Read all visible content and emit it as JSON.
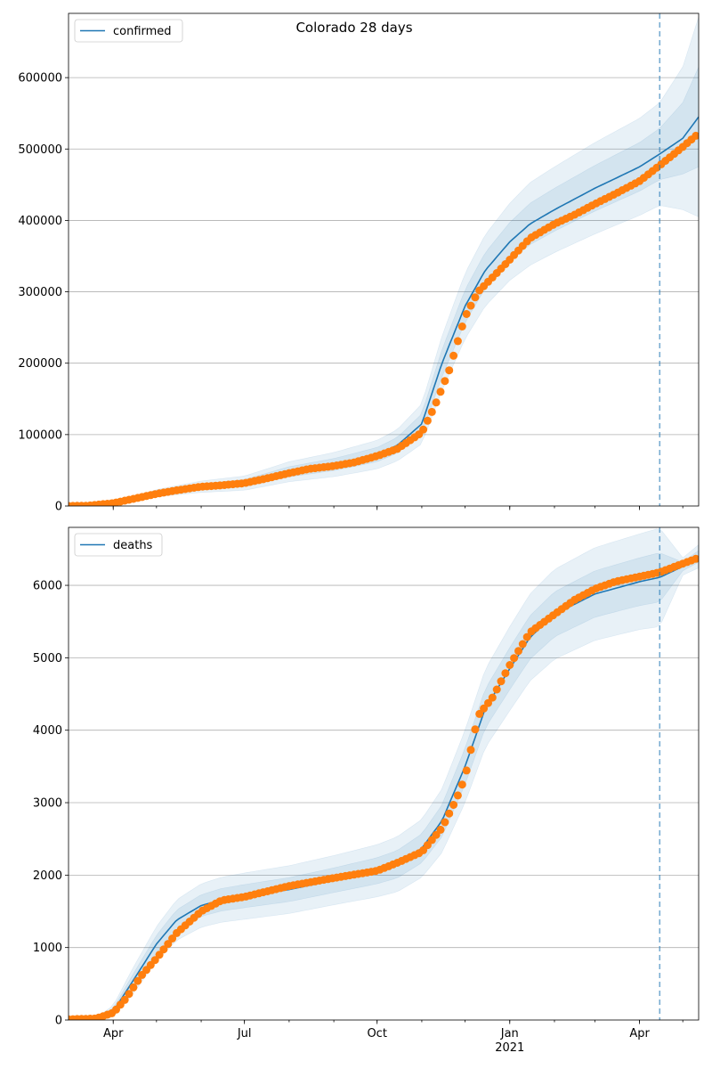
{
  "title": "Colorado 28 days",
  "colors": {
    "model_line": "#1f77b4",
    "band": "#1f77b4",
    "observed": "#ff7f0e",
    "grid": "#b0b0b0",
    "forecast_line": "#1f77b4"
  },
  "chart_data": [
    {
      "type": "line",
      "legend": "confirmed",
      "legend_placement": "top-left",
      "grid": "y",
      "xlim": [
        "2020-03-01",
        "2021-05-12"
      ],
      "ylim": [
        0,
        690000
      ],
      "yticks": [
        0,
        100000,
        200000,
        300000,
        400000,
        500000,
        600000
      ],
      "yticklabels": [
        "0",
        "100000",
        "200000",
        "300000",
        "400000",
        "500000",
        "600000"
      ],
      "xtick_labels_shown": false,
      "forecast_start": "2021-04-15",
      "series": [
        {
          "name": "confirmed",
          "role": "model",
          "x": [
            "2020-03-01",
            "2020-04-01",
            "2020-05-01",
            "2020-06-01",
            "2020-07-01",
            "2020-08-01",
            "2020-09-01",
            "2020-10-01",
            "2020-10-15",
            "2020-11-01",
            "2020-11-15",
            "2020-12-01",
            "2020-12-15",
            "2021-01-01",
            "2021-01-15",
            "2021-02-01",
            "2021-03-01",
            "2021-04-01",
            "2021-04-15",
            "2021-05-01",
            "2021-05-12"
          ],
          "values": [
            0,
            3000,
            18000,
            27000,
            32000,
            48000,
            58000,
            72000,
            85000,
            115000,
            200000,
            280000,
            330000,
            370000,
            395000,
            415000,
            445000,
            475000,
            493000,
            515000,
            545000
          ],
          "band_half_widths": [
            [
              0,
              500,
              2500,
              4000,
              5000,
              7000,
              8500,
              10000,
              11000,
              14000,
              19000,
              23000,
              25000,
              27000,
              29000,
              30000,
              32000,
              34000,
              36000,
              50000,
              70000
            ],
            [
              0,
              1000,
              5000,
              8000,
              10000,
              14000,
              17000,
              20000,
              22000,
              28000,
              38000,
              46000,
              50000,
              54000,
              58000,
              60000,
              64000,
              68000,
              72000,
              100000,
              140000
            ]
          ]
        },
        {
          "name": "observed",
          "role": "observed",
          "x": [
            "2020-03-01",
            "2020-03-15",
            "2020-04-01",
            "2020-04-15",
            "2020-05-01",
            "2020-05-15",
            "2020-06-01",
            "2020-06-15",
            "2020-07-01",
            "2020-07-15",
            "2020-08-01",
            "2020-08-15",
            "2020-09-01",
            "2020-09-15",
            "2020-10-01",
            "2020-10-15",
            "2020-11-01",
            "2020-11-10",
            "2020-11-20",
            "2020-12-01",
            "2020-12-10",
            "2020-12-20",
            "2021-01-01",
            "2021-01-15",
            "2021-02-01",
            "2021-02-15",
            "2021-03-01",
            "2021-03-15",
            "2021-04-01",
            "2021-04-15",
            "2021-05-01",
            "2021-05-12"
          ],
          "values": [
            0,
            500,
            4000,
            10000,
            17000,
            22000,
            27000,
            29000,
            32000,
            38000,
            46000,
            52000,
            56000,
            61000,
            70000,
            80000,
            103000,
            140000,
            190000,
            265000,
            300000,
            320000,
            345000,
            375000,
            395000,
            408000,
            423000,
            437000,
            455000,
            477000,
            503000,
            522000
          ]
        }
      ]
    },
    {
      "type": "line",
      "legend": "deaths",
      "legend_placement": "top-left",
      "grid": "y",
      "xlim": [
        "2020-03-01",
        "2021-05-12"
      ],
      "ylim": [
        0,
        6800
      ],
      "yticks": [
        0,
        1000,
        2000,
        3000,
        4000,
        5000,
        6000
      ],
      "yticklabels": [
        "0",
        "1000",
        "2000",
        "3000",
        "4000",
        "5000",
        "6000"
      ],
      "xticks": [
        "2020-04-01",
        "2020-07-01",
        "2020-10-01",
        "2021-01-01",
        "2021-04-01"
      ],
      "xticklabels": [
        "Apr",
        "Jul",
        "Oct",
        "Jan",
        "Apr"
      ],
      "xticklabel_year": "2021",
      "forecast_start": "2021-04-15",
      "series": [
        {
          "name": "deaths",
          "role": "model",
          "x": [
            "2020-03-01",
            "2020-03-20",
            "2020-04-01",
            "2020-04-15",
            "2020-05-01",
            "2020-05-15",
            "2020-06-01",
            "2020-06-15",
            "2020-07-01",
            "2020-08-01",
            "2020-09-01",
            "2020-10-01",
            "2020-10-15",
            "2020-11-01",
            "2020-11-15",
            "2020-12-01",
            "2020-12-15",
            "2021-01-01",
            "2021-01-15",
            "2021-02-01",
            "2021-03-01",
            "2021-04-01",
            "2021-04-15",
            "2021-05-01",
            "2021-05-12"
          ],
          "values": [
            0,
            10,
            120,
            550,
            1050,
            1380,
            1580,
            1660,
            1710,
            1800,
            1930,
            2060,
            2150,
            2370,
            2750,
            3500,
            4300,
            4850,
            5280,
            5600,
            5880,
            6050,
            6110,
            6260,
            6400
          ],
          "band_half_widths": [
            [
              0,
              10,
              40,
              90,
              120,
              140,
              150,
              155,
              160,
              165,
              170,
              180,
              190,
              200,
              220,
              250,
              270,
              290,
              300,
              310,
              320,
              330,
              340,
              60,
              80
            ],
            [
              0,
              20,
              80,
              180,
              240,
              280,
              300,
              310,
              320,
              330,
              340,
              360,
              380,
              400,
              440,
              500,
              540,
              580,
              600,
              620,
              640,
              660,
              680,
              120,
              160
            ]
          ]
        },
        {
          "name": "observed",
          "role": "observed",
          "x": [
            "2020-03-01",
            "2020-03-20",
            "2020-04-01",
            "2020-04-10",
            "2020-04-20",
            "2020-05-01",
            "2020-05-15",
            "2020-06-01",
            "2020-06-15",
            "2020-07-01",
            "2020-08-01",
            "2020-09-01",
            "2020-10-01",
            "2020-10-15",
            "2020-11-01",
            "2020-11-15",
            "2020-11-25",
            "2020-12-01",
            "2020-12-10",
            "2020-12-20",
            "2021-01-01",
            "2021-01-15",
            "2021-02-01",
            "2021-02-15",
            "2021-03-01",
            "2021-03-15",
            "2021-04-01",
            "2021-04-15",
            "2021-05-01",
            "2021-05-12"
          ],
          "values": [
            10,
            20,
            100,
            300,
            600,
            850,
            1200,
            1500,
            1650,
            1700,
            1850,
            1960,
            2060,
            2170,
            2320,
            2650,
            3050,
            3350,
            4200,
            4450,
            4900,
            5350,
            5600,
            5800,
            5950,
            6050,
            6120,
            6180,
            6300,
            6380
          ]
        }
      ]
    }
  ]
}
